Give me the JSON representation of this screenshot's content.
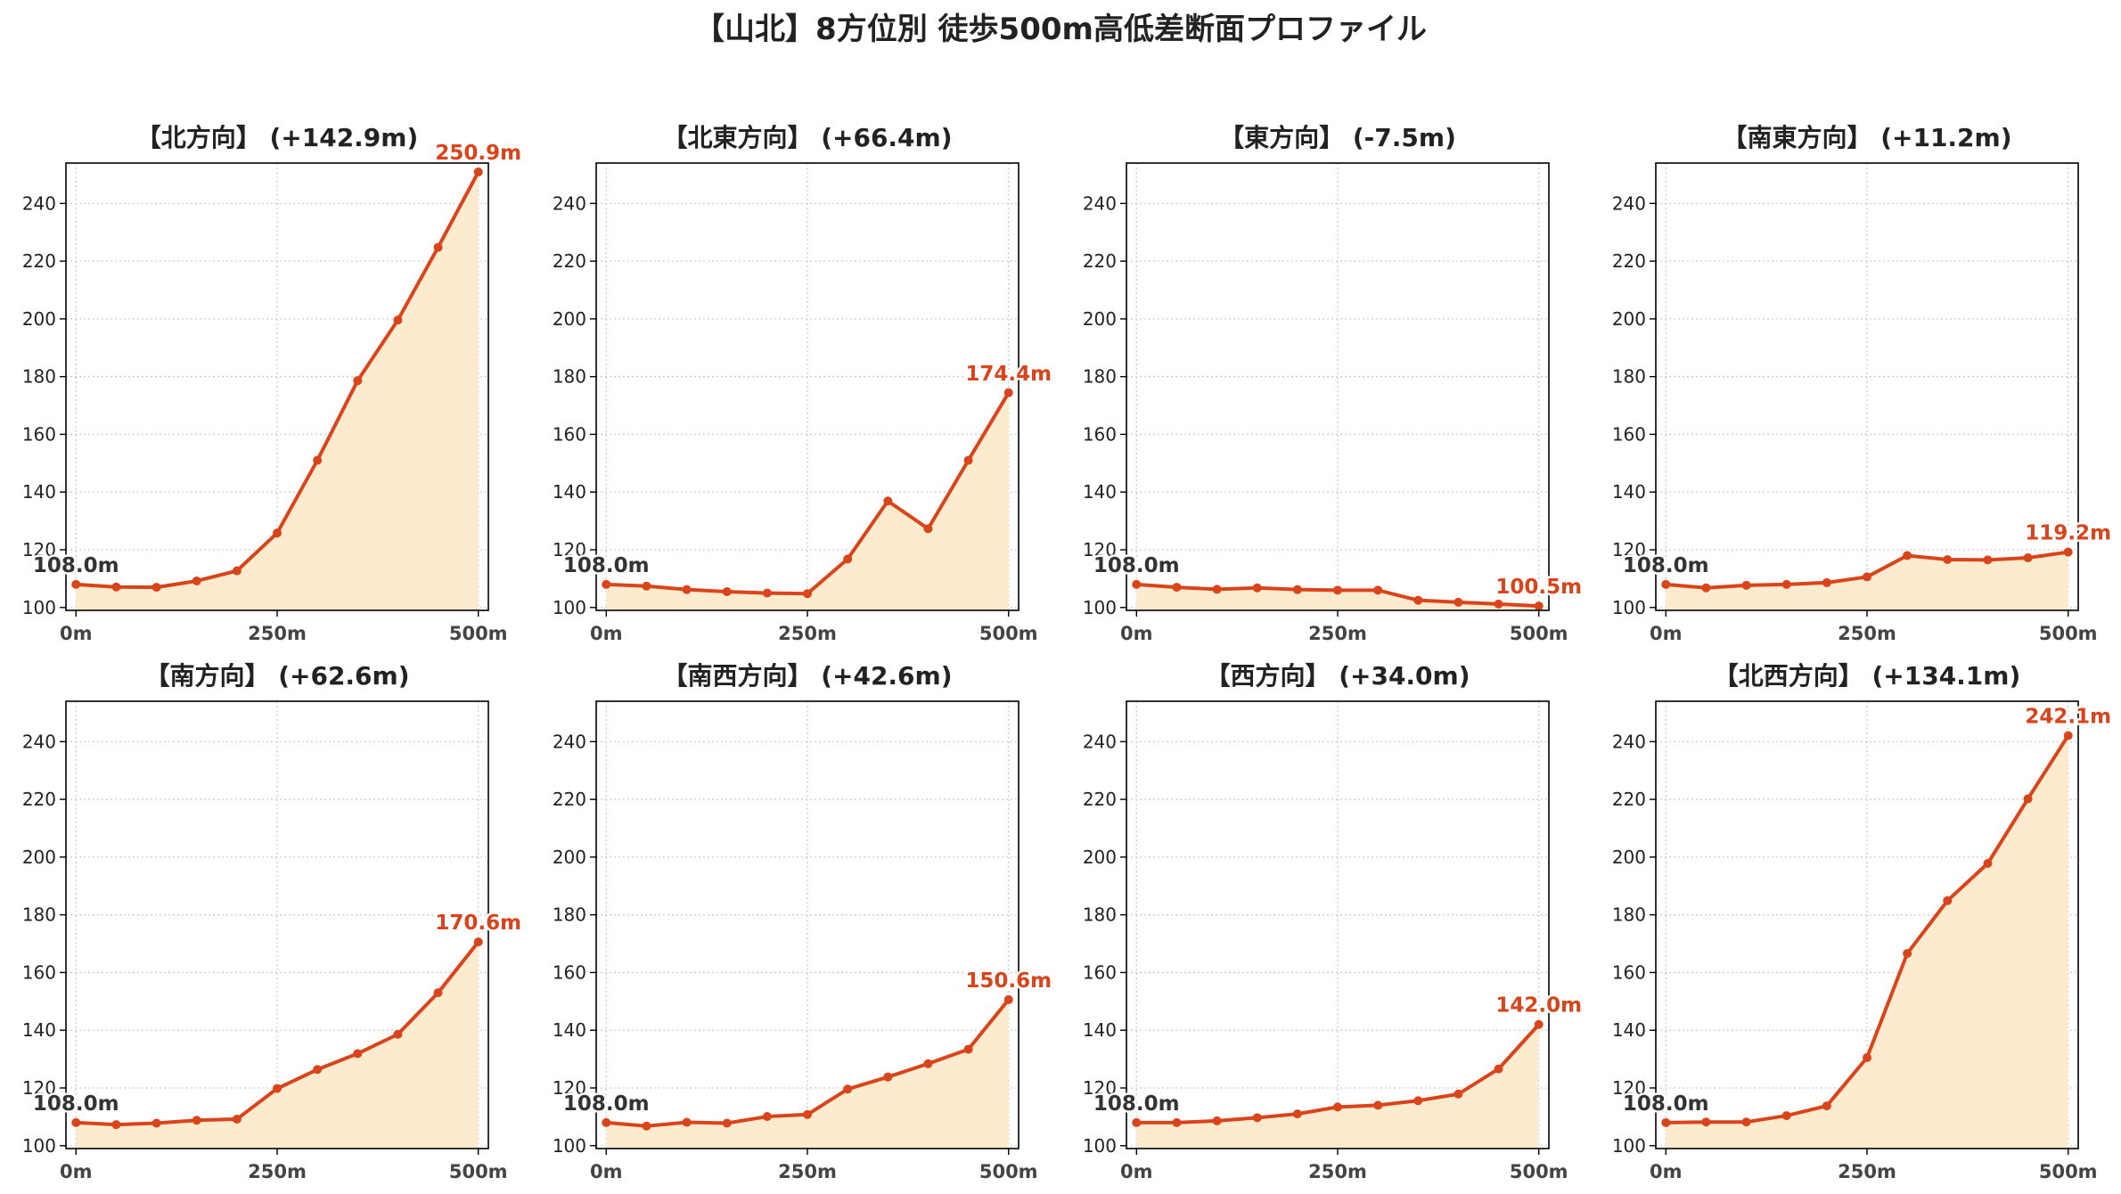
{
  "figure": {
    "title": "【山北】8方位別 徒歩500m高低差断面プロファイル",
    "colors": {
      "line": "#d9441a",
      "fill": "#fdebd0",
      "grid": "#cccccc",
      "start_label": "#333333",
      "end_label": "#d9441a"
    }
  },
  "chart_data": [
    {
      "type": "area",
      "title": "【北方向】 (+142.9m)",
      "x": [
        0,
        50,
        100,
        150,
        200,
        250,
        300,
        350,
        400,
        450,
        500
      ],
      "xticks": [
        0,
        250,
        500
      ],
      "xtick_labels": [
        "0m",
        "250m",
        "500m"
      ],
      "series": [
        {
          "values": [
            108.0,
            107.1,
            107.0,
            109.2,
            112.7,
            125.8,
            151.0,
            178.6,
            199.6,
            224.8,
            250.9
          ]
        }
      ],
      "ylim": [
        99,
        254
      ],
      "yticks": [
        100,
        120,
        140,
        160,
        180,
        200,
        220,
        240
      ],
      "grid": true,
      "start_label": "108.0m",
      "end_label": "250.9m"
    },
    {
      "type": "area",
      "title": "【北東方向】 (+66.4m)",
      "x": [
        0,
        50,
        100,
        150,
        200,
        250,
        300,
        350,
        400,
        450,
        500
      ],
      "xticks": [
        0,
        250,
        500
      ],
      "xtick_labels": [
        "0m",
        "250m",
        "500m"
      ],
      "series": [
        {
          "values": [
            108.0,
            107.4,
            106.2,
            105.5,
            105.0,
            104.8,
            116.8,
            136.9,
            127.3,
            151.0,
            174.4
          ]
        }
      ],
      "ylim": [
        99,
        254
      ],
      "yticks": [
        100,
        120,
        140,
        160,
        180,
        200,
        220,
        240
      ],
      "grid": true,
      "start_label": "108.0m",
      "end_label": "174.4m"
    },
    {
      "type": "area",
      "title": "【東方向】 (-7.5m)",
      "x": [
        0,
        50,
        100,
        150,
        200,
        250,
        300,
        350,
        400,
        450,
        500
      ],
      "xticks": [
        0,
        250,
        500
      ],
      "xtick_labels": [
        "0m",
        "250m",
        "500m"
      ],
      "series": [
        {
          "values": [
            108.0,
            107.0,
            106.3,
            106.8,
            106.2,
            106.0,
            106.0,
            102.5,
            101.8,
            101.2,
            100.5
          ]
        }
      ],
      "ylim": [
        99,
        254
      ],
      "yticks": [
        100,
        120,
        140,
        160,
        180,
        200,
        220,
        240
      ],
      "grid": true,
      "start_label": "108.0m",
      "end_label": "100.5m"
    },
    {
      "type": "area",
      "title": "【南東方向】 (+11.2m)",
      "x": [
        0,
        50,
        100,
        150,
        200,
        250,
        300,
        350,
        400,
        450,
        500
      ],
      "xticks": [
        0,
        250,
        500
      ],
      "xtick_labels": [
        "0m",
        "250m",
        "500m"
      ],
      "series": [
        {
          "values": [
            108.0,
            106.8,
            107.7,
            108.0,
            108.6,
            110.6,
            118.0,
            116.6,
            116.5,
            117.2,
            119.2
          ]
        }
      ],
      "ylim": [
        99,
        254
      ],
      "yticks": [
        100,
        120,
        140,
        160,
        180,
        200,
        220,
        240
      ],
      "grid": true,
      "start_label": "108.0m",
      "end_label": "119.2m"
    },
    {
      "type": "area",
      "title": "【南方向】 (+62.6m)",
      "x": [
        0,
        50,
        100,
        150,
        200,
        250,
        300,
        350,
        400,
        450,
        500
      ],
      "xticks": [
        0,
        250,
        500
      ],
      "xtick_labels": [
        "0m",
        "250m",
        "500m"
      ],
      "series": [
        {
          "values": [
            108.0,
            107.3,
            107.8,
            108.8,
            109.2,
            119.8,
            126.4,
            131.9,
            138.6,
            153.0,
            170.6
          ]
        }
      ],
      "ylim": [
        99,
        254
      ],
      "yticks": [
        100,
        120,
        140,
        160,
        180,
        200,
        220,
        240
      ],
      "grid": true,
      "start_label": "108.0m",
      "end_label": "170.6m"
    },
    {
      "type": "area",
      "title": "【南西方向】 (+42.6m)",
      "x": [
        0,
        50,
        100,
        150,
        200,
        250,
        300,
        350,
        400,
        450,
        500
      ],
      "xticks": [
        0,
        250,
        500
      ],
      "xtick_labels": [
        "0m",
        "250m",
        "500m"
      ],
      "series": [
        {
          "values": [
            108.0,
            106.8,
            108.1,
            107.8,
            110.1,
            110.8,
            119.6,
            123.8,
            128.4,
            133.4,
            150.6
          ]
        }
      ],
      "ylim": [
        99,
        254
      ],
      "yticks": [
        100,
        120,
        140,
        160,
        180,
        200,
        220,
        240
      ],
      "grid": true,
      "start_label": "108.0m",
      "end_label": "150.6m"
    },
    {
      "type": "area",
      "title": "【西方向】 (+34.0m)",
      "x": [
        0,
        50,
        100,
        150,
        200,
        250,
        300,
        350,
        400,
        450,
        500
      ],
      "xticks": [
        0,
        250,
        500
      ],
      "xtick_labels": [
        "0m",
        "250m",
        "500m"
      ],
      "series": [
        {
          "values": [
            108.0,
            108.0,
            108.6,
            109.7,
            111.0,
            113.4,
            114.0,
            115.6,
            117.9,
            126.6,
            142.0
          ]
        }
      ],
      "ylim": [
        99,
        254
      ],
      "yticks": [
        100,
        120,
        140,
        160,
        180,
        200,
        220,
        240
      ],
      "grid": true,
      "start_label": "108.0m",
      "end_label": "142.0m"
    },
    {
      "type": "area",
      "title": "【北西方向】 (+134.1m)",
      "x": [
        0,
        50,
        100,
        150,
        200,
        250,
        300,
        350,
        400,
        450,
        500
      ],
      "xticks": [
        0,
        250,
        500
      ],
      "xtick_labels": [
        "0m",
        "250m",
        "500m"
      ],
      "series": [
        {
          "values": [
            108.0,
            108.2,
            108.2,
            110.4,
            113.8,
            130.5,
            166.6,
            184.9,
            197.8,
            220.2,
            242.1
          ]
        }
      ],
      "ylim": [
        99,
        254
      ],
      "yticks": [
        100,
        120,
        140,
        160,
        180,
        200,
        220,
        240
      ],
      "grid": true,
      "start_label": "108.0m",
      "end_label": "242.1m"
    }
  ]
}
